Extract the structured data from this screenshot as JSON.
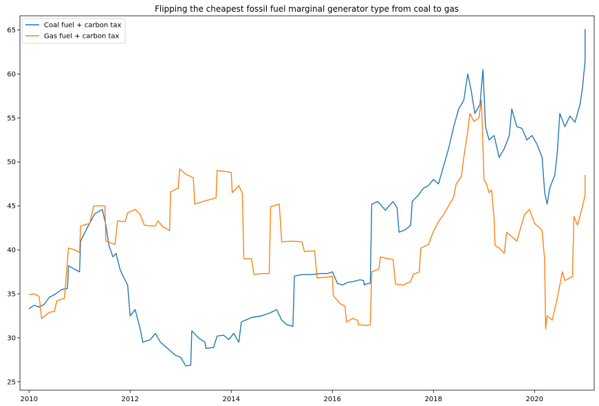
{
  "chart_data": {
    "type": "line",
    "title": "Flipping the cheapest fossil fuel marginal generator type from coal to gas",
    "xlabel": "",
    "ylabel": "",
    "xlim": [
      2009.82,
      2021.18
    ],
    "ylim": [
      24.05,
      66.6
    ],
    "xticks": [
      2010,
      2012,
      2014,
      2016,
      2018,
      2020
    ],
    "xtick_labels": [
      "2010",
      "2012",
      "2014",
      "2016",
      "2018",
      "2020"
    ],
    "yticks": [
      25,
      30,
      35,
      40,
      45,
      50,
      55,
      60,
      65
    ],
    "ytick_labels": [
      "25",
      "30",
      "35",
      "40",
      "45",
      "50",
      "55",
      "60",
      "65"
    ],
    "grid": false,
    "legend_position": "top-left",
    "series": [
      {
        "name": "Coal fuel + carbon tax",
        "color": "#1f77b4",
        "points": [
          [
            2010.0,
            33.3
          ],
          [
            2010.1,
            33.7
          ],
          [
            2010.2,
            33.5
          ],
          [
            2010.3,
            33.8
          ],
          [
            2010.4,
            34.6
          ],
          [
            2010.5,
            34.9
          ],
          [
            2010.65,
            35.5
          ],
          [
            2010.76,
            35.6
          ],
          [
            2010.78,
            38.2
          ],
          [
            2010.9,
            37.8
          ],
          [
            2011.0,
            37.5
          ],
          [
            2011.02,
            41.0
          ],
          [
            2011.15,
            42.5
          ],
          [
            2011.3,
            44.1
          ],
          [
            2011.45,
            44.6
          ],
          [
            2011.52,
            42.8
          ],
          [
            2011.58,
            40.5
          ],
          [
            2011.66,
            39.2
          ],
          [
            2011.72,
            39.6
          ],
          [
            2011.8,
            37.8
          ],
          [
            2011.87,
            36.9
          ],
          [
            2011.95,
            36.0
          ],
          [
            2012.0,
            32.5
          ],
          [
            2012.1,
            33.2
          ],
          [
            2012.2,
            31.0
          ],
          [
            2012.25,
            29.5
          ],
          [
            2012.4,
            29.8
          ],
          [
            2012.5,
            30.5
          ],
          [
            2012.6,
            29.5
          ],
          [
            2012.7,
            29.0
          ],
          [
            2012.8,
            28.5
          ],
          [
            2012.9,
            28.0
          ],
          [
            2013.0,
            27.8
          ],
          [
            2013.1,
            26.8
          ],
          [
            2013.2,
            26.9
          ],
          [
            2013.22,
            30.8
          ],
          [
            2013.35,
            30.0
          ],
          [
            2013.48,
            29.5
          ],
          [
            2013.5,
            28.8
          ],
          [
            2013.65,
            28.9
          ],
          [
            2013.72,
            30.2
          ],
          [
            2013.85,
            30.3
          ],
          [
            2013.95,
            29.8
          ],
          [
            2014.05,
            30.5
          ],
          [
            2014.15,
            29.5
          ],
          [
            2014.2,
            31.8
          ],
          [
            2014.4,
            32.3
          ],
          [
            2014.6,
            32.5
          ],
          [
            2014.75,
            32.8
          ],
          [
            2014.9,
            33.2
          ],
          [
            2015.0,
            32.0
          ],
          [
            2015.1,
            31.5
          ],
          [
            2015.22,
            31.3
          ],
          [
            2015.25,
            37.0
          ],
          [
            2015.4,
            37.2
          ],
          [
            2015.6,
            37.2
          ],
          [
            2015.75,
            37.3
          ],
          [
            2015.9,
            37.3
          ],
          [
            2016.0,
            37.5
          ],
          [
            2016.1,
            36.2
          ],
          [
            2016.2,
            36.0
          ],
          [
            2016.3,
            36.3
          ],
          [
            2016.42,
            36.4
          ],
          [
            2016.55,
            36.6
          ],
          [
            2016.62,
            36.5
          ],
          [
            2016.63,
            36.0
          ],
          [
            2016.65,
            36.1
          ],
          [
            2016.75,
            36.2
          ],
          [
            2016.78,
            45.2
          ],
          [
            2016.9,
            45.5
          ],
          [
            2017.05,
            44.5
          ],
          [
            2017.2,
            45.5
          ],
          [
            2017.28,
            44.8
          ],
          [
            2017.32,
            42.0
          ],
          [
            2017.45,
            42.3
          ],
          [
            2017.55,
            42.8
          ],
          [
            2017.58,
            45.5
          ],
          [
            2017.7,
            46.2
          ],
          [
            2017.8,
            47.0
          ],
          [
            2017.9,
            47.3
          ],
          [
            2018.0,
            48.0
          ],
          [
            2018.1,
            47.5
          ],
          [
            2018.2,
            49.5
          ],
          [
            2018.3,
            51.5
          ],
          [
            2018.4,
            54.0
          ],
          [
            2018.5,
            56.0
          ],
          [
            2018.6,
            57.0
          ],
          [
            2018.68,
            60.0
          ],
          [
            2018.75,
            58.0
          ],
          [
            2018.82,
            55.5
          ],
          [
            2018.92,
            56.5
          ],
          [
            2018.98,
            60.5
          ],
          [
            2019.03,
            54.0
          ],
          [
            2019.1,
            52.5
          ],
          [
            2019.2,
            53.0
          ],
          [
            2019.3,
            50.5
          ],
          [
            2019.4,
            51.5
          ],
          [
            2019.5,
            53.0
          ],
          [
            2019.55,
            56.0
          ],
          [
            2019.65,
            54.0
          ],
          [
            2019.75,
            53.8
          ],
          [
            2019.85,
            52.5
          ],
          [
            2019.95,
            53.0
          ],
          [
            2020.05,
            52.0
          ],
          [
            2020.15,
            50.5
          ],
          [
            2020.2,
            46.5
          ],
          [
            2020.25,
            45.2
          ],
          [
            2020.3,
            47.0
          ],
          [
            2020.4,
            48.5
          ],
          [
            2020.45,
            51.0
          ],
          [
            2020.5,
            55.5
          ],
          [
            2020.6,
            54.0
          ],
          [
            2020.7,
            55.2
          ],
          [
            2020.8,
            54.5
          ],
          [
            2020.9,
            56.5
          ],
          [
            2020.95,
            58.5
          ],
          [
            2021.0,
            61.5
          ],
          [
            2021.0,
            65.1
          ]
        ]
      },
      {
        "name": "Gas fuel + carbon tax",
        "color": "#ff7f0e",
        "points": [
          [
            2010.0,
            34.9
          ],
          [
            2010.1,
            35.0
          ],
          [
            2010.2,
            34.7
          ],
          [
            2010.25,
            32.2
          ],
          [
            2010.4,
            32.9
          ],
          [
            2010.5,
            33.0
          ],
          [
            2010.55,
            34.2
          ],
          [
            2010.7,
            34.5
          ],
          [
            2010.78,
            40.2
          ],
          [
            2010.9,
            40.0
          ],
          [
            2011.0,
            39.7
          ],
          [
            2011.02,
            42.7
          ],
          [
            2011.2,
            43.0
          ],
          [
            2011.28,
            45.0
          ],
          [
            2011.5,
            45.0
          ],
          [
            2011.52,
            41.0
          ],
          [
            2011.7,
            40.6
          ],
          [
            2011.75,
            43.3
          ],
          [
            2011.9,
            43.2
          ],
          [
            2011.95,
            44.2
          ],
          [
            2012.1,
            44.6
          ],
          [
            2012.2,
            44.0
          ],
          [
            2012.28,
            42.8
          ],
          [
            2012.5,
            42.7
          ],
          [
            2012.55,
            43.3
          ],
          [
            2012.65,
            42.6
          ],
          [
            2012.78,
            42.2
          ],
          [
            2012.8,
            46.6
          ],
          [
            2012.95,
            47.0
          ],
          [
            2012.98,
            49.2
          ],
          [
            2013.1,
            48.6
          ],
          [
            2013.25,
            48.2
          ],
          [
            2013.28,
            45.2
          ],
          [
            2013.5,
            45.6
          ],
          [
            2013.7,
            45.9
          ],
          [
            2013.72,
            49.0
          ],
          [
            2013.9,
            48.9
          ],
          [
            2014.0,
            48.8
          ],
          [
            2014.02,
            46.5
          ],
          [
            2014.15,
            47.3
          ],
          [
            2014.22,
            46.4
          ],
          [
            2014.25,
            39.0
          ],
          [
            2014.4,
            39.0
          ],
          [
            2014.45,
            37.2
          ],
          [
            2014.6,
            37.3
          ],
          [
            2014.75,
            37.3
          ],
          [
            2014.78,
            44.9
          ],
          [
            2014.95,
            45.2
          ],
          [
            2015.0,
            40.9
          ],
          [
            2015.2,
            41.0
          ],
          [
            2015.4,
            40.9
          ],
          [
            2015.45,
            39.8
          ],
          [
            2015.65,
            39.9
          ],
          [
            2015.7,
            36.8
          ],
          [
            2015.9,
            36.9
          ],
          [
            2016.0,
            37.0
          ],
          [
            2016.02,
            34.8
          ],
          [
            2016.15,
            33.9
          ],
          [
            2016.25,
            33.6
          ],
          [
            2016.28,
            31.8
          ],
          [
            2016.4,
            32.2
          ],
          [
            2016.5,
            32.0
          ],
          [
            2016.52,
            31.5
          ],
          [
            2016.7,
            31.4
          ],
          [
            2016.75,
            31.5
          ],
          [
            2016.78,
            37.5
          ],
          [
            2016.92,
            37.8
          ],
          [
            2016.95,
            39.2
          ],
          [
            2017.1,
            39.0
          ],
          [
            2017.2,
            38.9
          ],
          [
            2017.25,
            36.1
          ],
          [
            2017.4,
            36.0
          ],
          [
            2017.55,
            36.4
          ],
          [
            2017.6,
            37.2
          ],
          [
            2017.72,
            37.5
          ],
          [
            2017.75,
            40.2
          ],
          [
            2017.9,
            40.6
          ],
          [
            2018.0,
            42.1
          ],
          [
            2018.1,
            43.2
          ],
          [
            2018.2,
            44.0
          ],
          [
            2018.3,
            45.0
          ],
          [
            2018.4,
            46.0
          ],
          [
            2018.45,
            47.5
          ],
          [
            2018.55,
            48.3
          ],
          [
            2018.6,
            50.5
          ],
          [
            2018.68,
            53.5
          ],
          [
            2018.72,
            55.5
          ],
          [
            2018.8,
            54.6
          ],
          [
            2018.9,
            55.0
          ],
          [
            2018.95,
            57.0
          ],
          [
            2019.0,
            48.0
          ],
          [
            2019.05,
            47.5
          ],
          [
            2019.1,
            46.5
          ],
          [
            2019.15,
            46.8
          ],
          [
            2019.2,
            43.5
          ],
          [
            2019.22,
            40.5
          ],
          [
            2019.3,
            40.2
          ],
          [
            2019.4,
            39.6
          ],
          [
            2019.45,
            42.0
          ],
          [
            2019.55,
            41.5
          ],
          [
            2019.65,
            41.0
          ],
          [
            2019.7,
            42.0
          ],
          [
            2019.8,
            44.0
          ],
          [
            2019.9,
            44.6
          ],
          [
            2020.0,
            43.0
          ],
          [
            2020.1,
            42.5
          ],
          [
            2020.15,
            42.2
          ],
          [
            2020.2,
            38.8
          ],
          [
            2020.22,
            31.0
          ],
          [
            2020.25,
            32.5
          ],
          [
            2020.35,
            32.0
          ],
          [
            2020.45,
            34.5
          ],
          [
            2020.5,
            36.0
          ],
          [
            2020.55,
            37.5
          ],
          [
            2020.6,
            36.5
          ],
          [
            2020.7,
            36.8
          ],
          [
            2020.75,
            37.0
          ],
          [
            2020.78,
            43.8
          ],
          [
            2020.85,
            42.8
          ],
          [
            2020.92,
            44.3
          ],
          [
            2021.0,
            46.2
          ],
          [
            2021.0,
            48.5
          ]
        ]
      }
    ]
  }
}
